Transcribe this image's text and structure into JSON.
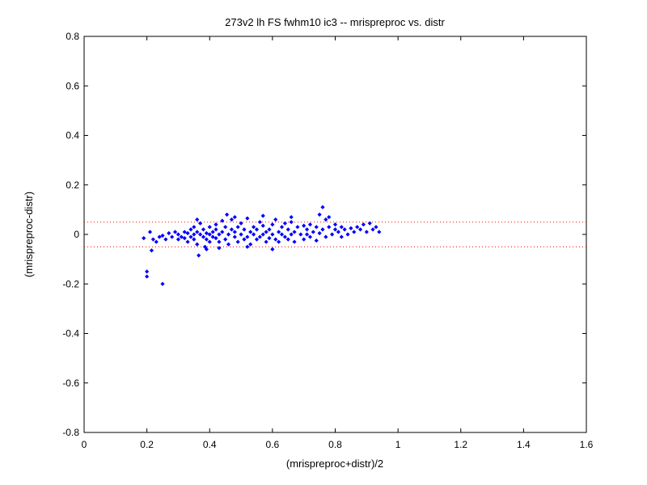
{
  "chart_data": {
    "type": "scatter",
    "title": "273v2 lh FS fwhm10 ic3 -- mrispreproc vs. distr",
    "xlabel": "(mrispreproc+distr)/2",
    "ylabel": "(mrispreproc-distr)",
    "xlim": [
      0,
      1.6
    ],
    "ylim": [
      -0.8,
      0.8
    ],
    "xticks": [
      "0",
      "0.2",
      "0.4",
      "0.6",
      "0.8",
      "1",
      "1.2",
      "1.4",
      "1.6"
    ],
    "yticks": [
      "-0.8",
      "-0.6",
      "-0.4",
      "-0.2",
      "0",
      "0.2",
      "0.4",
      "0.6",
      "0.8"
    ],
    "grid": false,
    "reference_lines": [
      0.05,
      -0.05
    ],
    "colors": {
      "points": "#0000ff",
      "reference_lines": "#ff0000",
      "axes": "#000000"
    },
    "marker": "diamond",
    "points": [
      [
        0.19,
        -0.015
      ],
      [
        0.2,
        -0.15
      ],
      [
        0.2,
        -0.17
      ],
      [
        0.25,
        -0.2
      ],
      [
        0.21,
        0.01
      ],
      [
        0.22,
        -0.02
      ],
      [
        0.215,
        -0.065
      ],
      [
        0.23,
        -0.03
      ],
      [
        0.24,
        -0.01
      ],
      [
        0.25,
        -0.005
      ],
      [
        0.26,
        -0.02
      ],
      [
        0.27,
        0.005
      ],
      [
        0.28,
        -0.01
      ],
      [
        0.29,
        0.01
      ],
      [
        0.3,
        -0.02
      ],
      [
        0.3,
        0.0
      ],
      [
        0.31,
        -0.01
      ],
      [
        0.32,
        0.01
      ],
      [
        0.32,
        -0.015
      ],
      [
        0.33,
        0.005
      ],
      [
        0.33,
        -0.03
      ],
      [
        0.34,
        0.02
      ],
      [
        0.34,
        -0.01
      ],
      [
        0.35,
        0.0
      ],
      [
        0.35,
        -0.02
      ],
      [
        0.35,
        0.03
      ],
      [
        0.36,
        -0.04
      ],
      [
        0.36,
        0.01
      ],
      [
        0.365,
        -0.085
      ],
      [
        0.37,
        0.0
      ],
      [
        0.37,
        0.045
      ],
      [
        0.38,
        -0.01
      ],
      [
        0.38,
        0.02
      ],
      [
        0.385,
        -0.05
      ],
      [
        0.39,
        0.005
      ],
      [
        0.39,
        -0.02
      ],
      [
        0.4,
        0.0
      ],
      [
        0.4,
        0.03
      ],
      [
        0.4,
        -0.03
      ],
      [
        0.41,
        0.01
      ],
      [
        0.41,
        -0.01
      ],
      [
        0.42,
        0.02
      ],
      [
        0.42,
        -0.015
      ],
      [
        0.42,
        0.04
      ],
      [
        0.43,
        0.0
      ],
      [
        0.43,
        -0.03
      ],
      [
        0.44,
        0.01
      ],
      [
        0.44,
        0.055
      ],
      [
        0.45,
        -0.02
      ],
      [
        0.45,
        0.03
      ],
      [
        0.46,
        0.0
      ],
      [
        0.46,
        -0.04
      ],
      [
        0.47,
        0.02
      ],
      [
        0.47,
        0.06
      ],
      [
        0.48,
        -0.01
      ],
      [
        0.48,
        0.01
      ],
      [
        0.49,
        0.03
      ],
      [
        0.49,
        -0.03
      ],
      [
        0.5,
        0.0
      ],
      [
        0.5,
        0.045
      ],
      [
        0.51,
        -0.02
      ],
      [
        0.51,
        0.02
      ],
      [
        0.52,
        0.065
      ],
      [
        0.52,
        -0.01
      ],
      [
        0.53,
        0.01
      ],
      [
        0.53,
        -0.04
      ],
      [
        0.54,
        0.03
      ],
      [
        0.54,
        0.0
      ],
      [
        0.55,
        -0.02
      ],
      [
        0.55,
        0.02
      ],
      [
        0.56,
        0.05
      ],
      [
        0.56,
        -0.01
      ],
      [
        0.57,
        0.0
      ],
      [
        0.57,
        0.035
      ],
      [
        0.58,
        -0.03
      ],
      [
        0.58,
        0.01
      ],
      [
        0.59,
        0.02
      ],
      [
        0.59,
        -0.015
      ],
      [
        0.6,
        0.04
      ],
      [
        0.6,
        0.0
      ],
      [
        0.61,
        -0.02
      ],
      [
        0.61,
        0.06
      ],
      [
        0.62,
        0.01
      ],
      [
        0.62,
        -0.03
      ],
      [
        0.63,
        0.03
      ],
      [
        0.63,
        0.0
      ],
      [
        0.64,
        -0.01
      ],
      [
        0.64,
        0.045
      ],
      [
        0.65,
        0.02
      ],
      [
        0.65,
        -0.02
      ],
      [
        0.66,
        0.05
      ],
      [
        0.66,
        0.0
      ],
      [
        0.67,
        0.01
      ],
      [
        0.67,
        -0.03
      ],
      [
        0.68,
        0.03
      ],
      [
        0.69,
        0.0
      ],
      [
        0.7,
        0.035
      ],
      [
        0.7,
        -0.02
      ],
      [
        0.71,
        0.02
      ],
      [
        0.71,
        0.0
      ],
      [
        0.72,
        0.04
      ],
      [
        0.72,
        -0.01
      ],
      [
        0.73,
        0.01
      ],
      [
        0.74,
        0.03
      ],
      [
        0.74,
        -0.025
      ],
      [
        0.75,
        0.08
      ],
      [
        0.75,
        0.005
      ],
      [
        0.76,
        0.11
      ],
      [
        0.76,
        0.02
      ],
      [
        0.77,
        0.06
      ],
      [
        0.77,
        -0.01
      ],
      [
        0.78,
        0.07
      ],
      [
        0.78,
        0.03
      ],
      [
        0.79,
        0.0
      ],
      [
        0.8,
        0.02
      ],
      [
        0.8,
        0.04
      ],
      [
        0.81,
        0.01
      ],
      [
        0.82,
        0.03
      ],
      [
        0.82,
        -0.01
      ],
      [
        0.83,
        0.02
      ],
      [
        0.84,
        0.0
      ],
      [
        0.85,
        0.025
      ],
      [
        0.86,
        0.01
      ],
      [
        0.87,
        0.03
      ],
      [
        0.88,
        0.02
      ],
      [
        0.89,
        0.04
      ],
      [
        0.9,
        0.01
      ],
      [
        0.91,
        0.045
      ],
      [
        0.92,
        0.02
      ],
      [
        0.93,
        0.03
      ],
      [
        0.94,
        0.01
      ],
      [
        0.455,
        0.08
      ],
      [
        0.39,
        -0.06
      ],
      [
        0.52,
        -0.05
      ],
      [
        0.6,
        -0.06
      ],
      [
        0.36,
        0.06
      ],
      [
        0.48,
        0.07
      ],
      [
        0.57,
        0.075
      ],
      [
        0.43,
        -0.055
      ],
      [
        0.66,
        0.07
      ]
    ]
  }
}
